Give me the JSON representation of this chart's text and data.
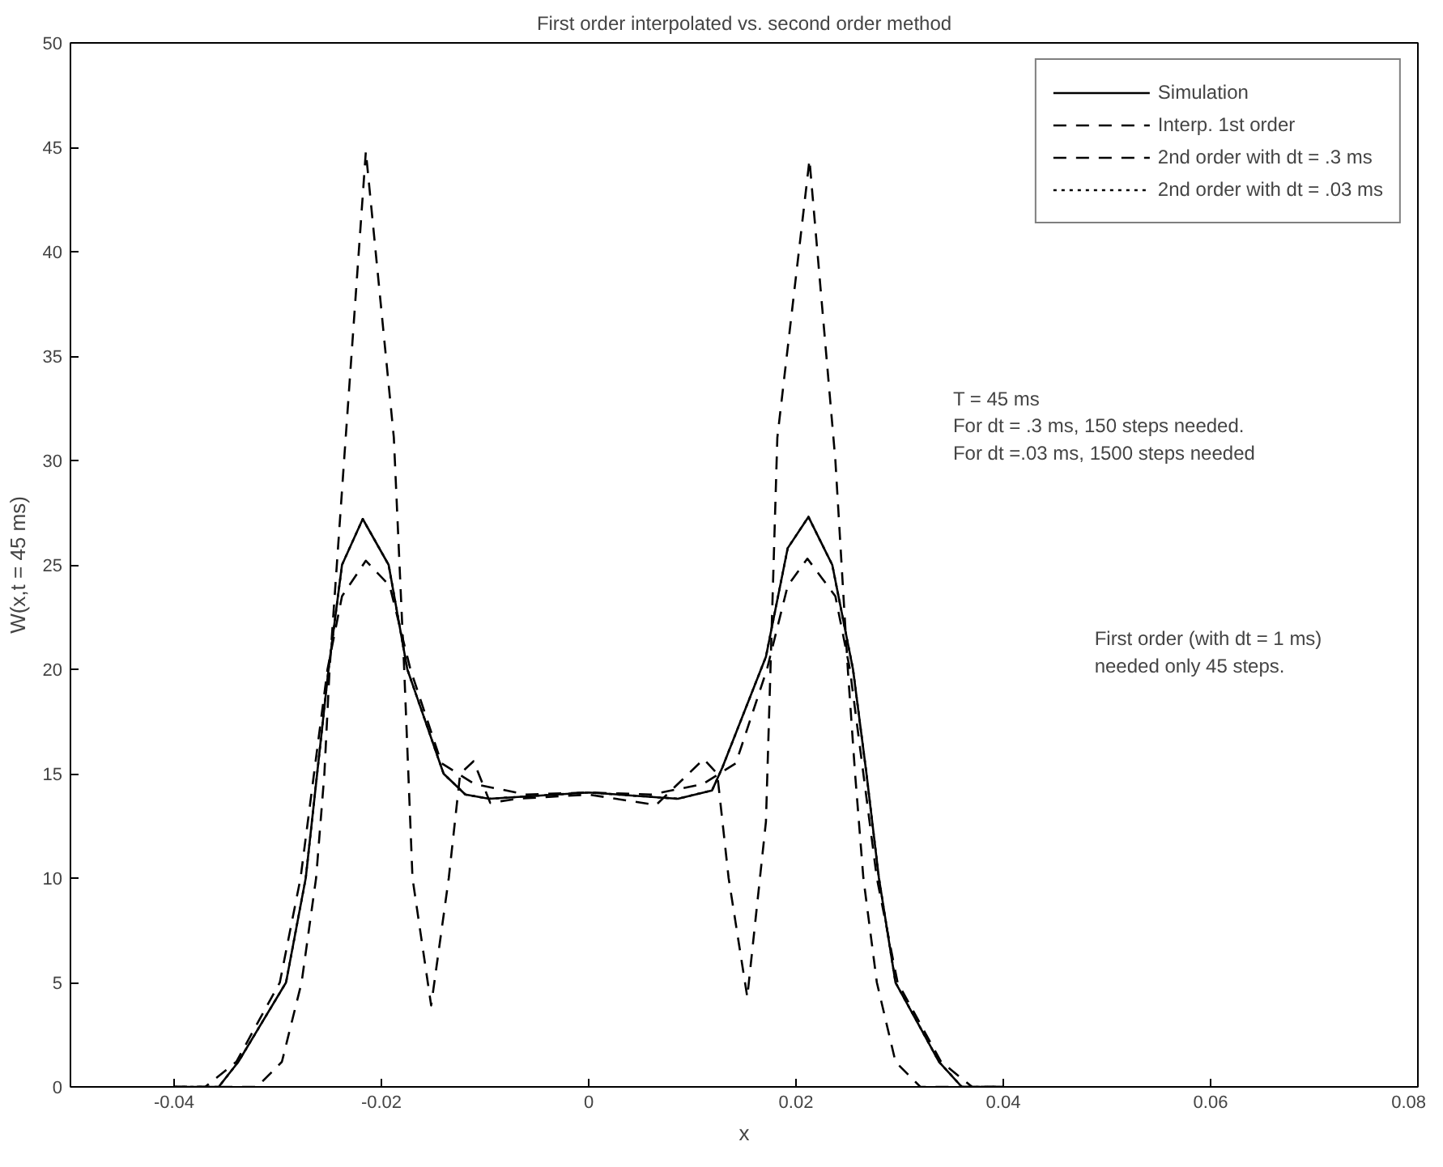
{
  "chart_data": {
    "type": "line",
    "title": "First order interpolated vs. second order method",
    "xlabel": "x",
    "ylabel": "W(x,t = 45 ms)",
    "xlim": [
      -0.05,
      0.08
    ],
    "ylim": [
      0,
      50
    ],
    "xticks": [
      -0.04,
      -0.02,
      0,
      0.02,
      0.04,
      0.06,
      0.08
    ],
    "yticks": [
      0,
      5,
      10,
      15,
      20,
      25,
      30,
      35,
      40,
      45,
      50
    ],
    "grid": false,
    "legend": "top right",
    "series": [
      {
        "name": "Simulation",
        "color": "#000000",
        "line_style": "solid",
        "x": [
          -0.04,
          -0.0357,
          -0.0338,
          -0.0292,
          -0.0273,
          -0.0262,
          -0.0251,
          -0.0238,
          -0.0218,
          -0.0193,
          -0.0175,
          -0.014,
          -0.0119,
          -0.0096,
          0,
          0.0086,
          0.0119,
          0.0129,
          0.0171,
          0.0192,
          0.0212,
          0.0235,
          0.0255,
          0.0268,
          0.028,
          0.0296,
          0.0338,
          0.036,
          0.04
        ],
        "values": [
          0,
          0,
          1.2,
          5,
          10,
          15,
          20,
          25,
          27.2,
          25,
          20,
          15,
          14,
          13.8,
          14.1,
          13.8,
          14.2,
          15.3,
          20.6,
          25.8,
          27.3,
          25,
          20,
          15,
          10,
          5,
          1.2,
          0,
          0
        ]
      },
      {
        "name": "Interp. 1st order",
        "color": "#000000",
        "line_style": "dashed",
        "x": [
          -0.04,
          -0.037,
          -0.034,
          -0.0298,
          -0.0278,
          -0.0265,
          -0.0252,
          -0.0238,
          -0.0215,
          -0.0192,
          -0.0172,
          -0.0142,
          -0.011,
          -0.006,
          0,
          0.006,
          0.011,
          0.0142,
          0.0172,
          0.0192,
          0.0211,
          0.0238,
          0.0252,
          0.0265,
          0.0278,
          0.0298,
          0.034,
          0.037,
          0.04
        ],
        "values": [
          0,
          0,
          1.2,
          5,
          10,
          15,
          20,
          23.5,
          25.2,
          24,
          20,
          15.5,
          14.5,
          14,
          14.1,
          14,
          14.5,
          15.5,
          20,
          24,
          25.3,
          23.5,
          20,
          15,
          10,
          5,
          1.2,
          0,
          0
        ]
      },
      {
        "name": "2nd order with dt = .3 ms",
        "color": "#000000",
        "line_style": "dashed",
        "x": [
          -0.04,
          -0.032,
          -0.0296,
          -0.0277,
          -0.0263,
          -0.0255,
          -0.025,
          -0.0236,
          -0.0215,
          -0.0188,
          -0.0178,
          -0.017,
          -0.0152,
          -0.0135,
          -0.0124,
          -0.0111,
          -0.0095,
          -0.0069,
          0,
          0.0065,
          0.0111,
          0.0124,
          0.0135,
          0.0153,
          0.0171,
          0.0182,
          0.0213,
          0.0238,
          0.025,
          0.0257,
          0.0265,
          0.0278,
          0.0296,
          0.032,
          0.04
        ],
        "values": [
          0,
          0,
          1.2,
          5,
          10,
          15,
          20,
          30,
          44.8,
          31.1,
          20,
          10,
          3.9,
          10,
          15,
          15.6,
          13.6,
          13.8,
          14,
          13.5,
          15.7,
          15,
          10,
          4.3,
          12.7,
          31.1,
          44.4,
          30,
          20,
          15,
          10,
          5,
          1.2,
          0,
          0
        ]
      },
      {
        "name": "2nd order with dt = .03 ms",
        "color": "#000000",
        "line_style": "dotted",
        "x": [
          -0.04,
          -0.0357,
          -0.0338,
          -0.0292,
          -0.0273,
          -0.0262,
          -0.0251,
          -0.0238,
          -0.0218,
          -0.0193,
          -0.0175,
          -0.014,
          -0.0119,
          -0.0096,
          0,
          0.0086,
          0.0119,
          0.0129,
          0.0171,
          0.0192,
          0.0212,
          0.0235,
          0.0255,
          0.0268,
          0.028,
          0.0296,
          0.0338,
          0.036,
          0.04
        ],
        "values": [
          0,
          0,
          1.2,
          5,
          10,
          15,
          20,
          25,
          27.2,
          25,
          20,
          15,
          14,
          13.8,
          14.1,
          13.8,
          14.2,
          15.3,
          20.6,
          25.8,
          27.3,
          25,
          20,
          15,
          10,
          5,
          1.2,
          0,
          0
        ]
      }
    ],
    "annotations": [
      "T = 45 ms\nFor dt = .3 ms, 150 steps needed.\nFor dt =.03 ms, 1500 steps needed",
      "First order (with dt = 1 ms)\nneeded only 45 steps."
    ]
  }
}
